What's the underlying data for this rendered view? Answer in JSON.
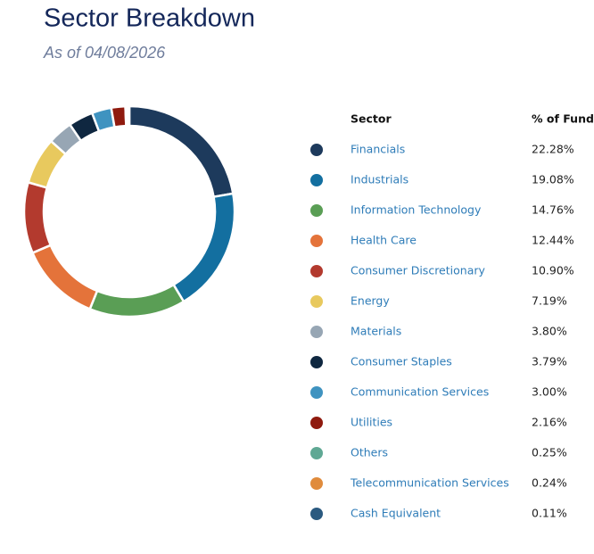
{
  "chart_data": {
    "type": "pie",
    "title": "Sector Breakdown",
    "subtitle": "As of 04/08/2026",
    "columns": [
      "Sector",
      "% of Fund"
    ],
    "categories": [
      "Financials",
      "Industrials",
      "Information Technology",
      "Health Care",
      "Consumer Discretionary",
      "Energy",
      "Materials",
      "Consumer Staples",
      "Communication Services",
      "Utilities",
      "Others",
      "Telecommunication Services",
      "Cash Equivalent"
    ],
    "values": [
      22.28,
      19.08,
      14.76,
      12.44,
      10.9,
      7.19,
      3.8,
      3.79,
      3.0,
      2.16,
      0.25,
      0.24,
      0.11
    ],
    "value_labels": [
      "22.28%",
      "19.08%",
      "14.76%",
      "12.44%",
      "10.90%",
      "7.19%",
      "3.80%",
      "3.79%",
      "3.00%",
      "2.16%",
      "0.25%",
      "0.24%",
      "0.11%"
    ],
    "colors": [
      "#1d3a5c",
      "#136fa0",
      "#5a9e55",
      "#e4733a",
      "#b33a2e",
      "#e8c95e",
      "#97a6b4",
      "#0f2740",
      "#3f93c0",
      "#8f1a0e",
      "#5fa894",
      "#e08b3c",
      "#2b5a80"
    ]
  }
}
